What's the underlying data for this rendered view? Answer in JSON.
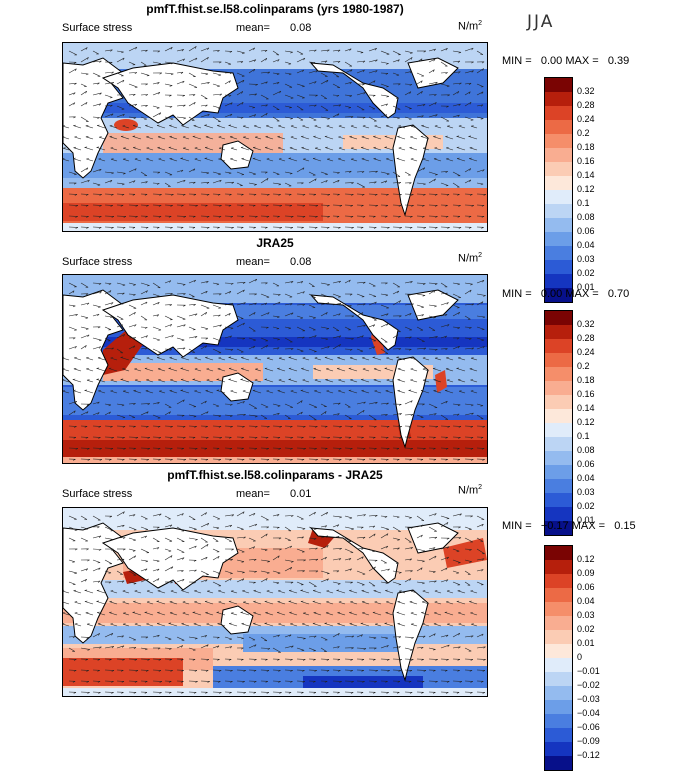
{
  "season": "JJA",
  "panels": [
    {
      "title": "pmfT.fhist.se.l58.colinparams (yrs 1980-1987)",
      "field": "Surface stress",
      "mean_label": "mean=",
      "mean_value": "0.08",
      "units": "N/m",
      "units_exp": "2",
      "min_label": "MIN =",
      "min_value": "0.00",
      "max_label": "MAX =",
      "max_value": "0.39",
      "colorbar": {
        "levels": [
          "0.32",
          "0.28",
          "0.24",
          "0.2",
          "0.18",
          "0.16",
          "0.14",
          "0.12",
          "0.1",
          "0.08",
          "0.06",
          "0.04",
          "0.03",
          "0.02",
          "0.01"
        ],
        "colors": [
          "#7a0403",
          "#b61f0c",
          "#dc4326",
          "#ec6a45",
          "#f58e6a",
          "#f9ad91",
          "#fbccb4",
          "#fde8da",
          "#e0ecfa",
          "#bcd5f4",
          "#94bbef",
          "#6c9ee8",
          "#4a7ee0",
          "#2c5bd6",
          "#1535c0",
          "#07108a"
        ]
      }
    },
    {
      "title": "JRA25",
      "field": "Surface stress",
      "mean_label": "mean=",
      "mean_value": "0.08",
      "units": "N/m",
      "units_exp": "2",
      "min_label": "MIN =",
      "min_value": "0.00",
      "max_label": "MAX =",
      "max_value": "0.70",
      "colorbar": {
        "levels": [
          "0.32",
          "0.28",
          "0.24",
          "0.2",
          "0.18",
          "0.16",
          "0.14",
          "0.12",
          "0.1",
          "0.08",
          "0.06",
          "0.04",
          "0.03",
          "0.02",
          "0.01"
        ],
        "colors": [
          "#7a0403",
          "#b61f0c",
          "#dc4326",
          "#ec6a45",
          "#f58e6a",
          "#f9ad91",
          "#fbccb4",
          "#fde8da",
          "#e0ecfa",
          "#bcd5f4",
          "#94bbef",
          "#6c9ee8",
          "#4a7ee0",
          "#2c5bd6",
          "#1535c0",
          "#07108a"
        ]
      }
    },
    {
      "title": "pmfT.fhist.se.l58.colinparams - JRA25",
      "field": "Surface stress",
      "mean_label": "mean=",
      "mean_value": "0.01",
      "units": "N/m",
      "units_exp": "2",
      "min_label": "MIN =",
      "min_value": "−0.17",
      "max_label": "MAX =",
      "max_value": "0.15",
      "colorbar": {
        "levels": [
          "0.12",
          "0.09",
          "0.06",
          "0.04",
          "0.03",
          "0.02",
          "0.01",
          "0",
          "−0.01",
          "−0.02",
          "−0.03",
          "−0.04",
          "−0.06",
          "−0.09",
          "−0.12"
        ],
        "colors": [
          "#7a0403",
          "#b61f0c",
          "#dc4326",
          "#ec6a45",
          "#f58e6a",
          "#f9ad91",
          "#fbccb4",
          "#fde8da",
          "#e0ecfa",
          "#bcd5f4",
          "#94bbef",
          "#6c9ee8",
          "#4a7ee0",
          "#2c5bd6",
          "#1535c0",
          "#07108a"
        ]
      }
    }
  ]
}
